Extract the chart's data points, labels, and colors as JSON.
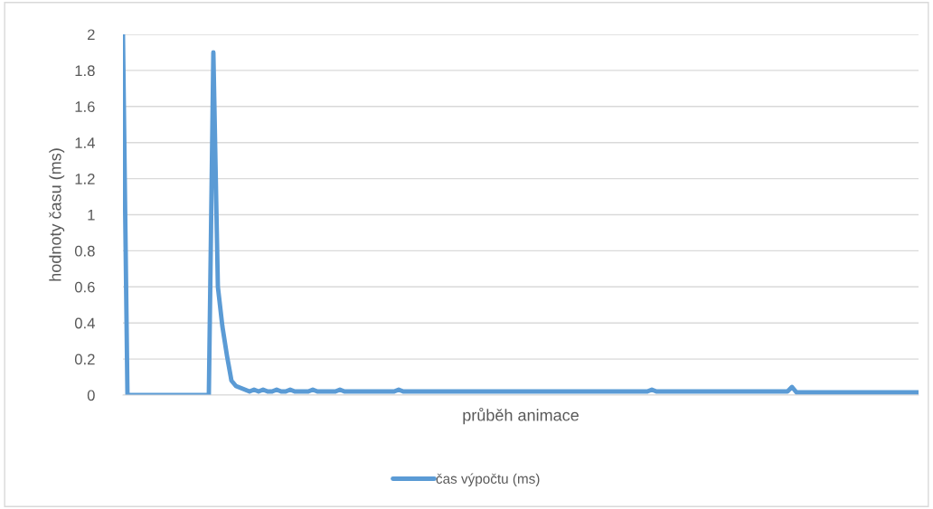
{
  "chart_data": {
    "type": "line",
    "xlabel": "průběh animace",
    "ylabel": "hodnoty času (ms)",
    "categories": [
      null,
      null,
      null,
      null,
      null,
      null,
      null,
      null,
      null,
      null,
      null,
      null,
      null,
      null,
      null,
      null,
      null,
      null,
      null,
      null,
      null,
      null,
      null,
      null,
      null,
      null,
      null,
      null,
      null,
      null,
      null,
      null,
      null,
      null,
      null,
      null,
      null,
      null,
      null,
      null,
      null,
      null,
      null,
      null,
      null,
      null,
      null,
      null,
      null,
      null,
      null,
      null,
      null,
      null,
      null,
      null,
      null,
      null,
      null,
      null,
      null,
      null,
      null,
      null,
      null,
      null,
      null,
      null,
      null,
      null,
      null,
      null,
      null,
      null,
      null,
      null,
      null,
      null,
      null,
      null,
      null,
      null,
      null,
      null,
      null,
      null,
      null,
      null,
      null,
      null,
      null,
      null,
      null,
      null,
      null,
      null,
      null,
      null,
      null,
      null,
      null,
      null,
      null,
      null,
      null,
      null,
      null,
      null,
      null,
      null,
      null,
      null,
      null,
      null,
      null,
      null,
      null,
      null,
      null,
      null,
      null,
      null,
      null,
      null,
      null,
      null,
      null,
      null,
      null,
      null,
      null,
      null,
      null,
      null,
      null,
      null,
      null,
      null,
      null,
      null,
      null,
      null,
      null,
      null,
      null,
      null,
      null,
      null,
      null,
      null,
      null,
      null,
      null,
      null,
      null,
      null,
      null,
      null,
      null,
      null,
      null,
      null,
      null,
      null,
      null,
      null,
      null,
      null,
      null,
      null,
      null,
      null,
      null,
      null,
      null,
      null,
      null
    ],
    "series": [
      {
        "name": "čas výpočtu (ms)",
        "color": "#5b9bd5",
        "values": [
          2,
          0,
          0,
          0,
          0,
          0,
          0,
          0,
          0,
          0,
          0,
          0,
          0,
          0,
          0,
          0,
          0,
          0,
          0,
          0,
          1.9,
          0.6,
          0.38,
          0.22,
          0.08,
          0.05,
          0.04,
          0.03,
          0.02,
          0.03,
          0.02,
          0.03,
          0.02,
          0.02,
          0.03,
          0.02,
          0.02,
          0.03,
          0.02,
          0.02,
          0.02,
          0.02,
          0.03,
          0.02,
          0.02,
          0.02,
          0.02,
          0.02,
          0.03,
          0.02,
          0.02,
          0.02,
          0.02,
          0.02,
          0.02,
          0.02,
          0.02,
          0.02,
          0.02,
          0.02,
          0.02,
          0.03,
          0.02,
          0.02,
          0.02,
          0.02,
          0.02,
          0.02,
          0.02,
          0.02,
          0.02,
          0.02,
          0.02,
          0.02,
          0.02,
          0.02,
          0.02,
          0.02,
          0.02,
          0.02,
          0.02,
          0.02,
          0.02,
          0.02,
          0.02,
          0.02,
          0.02,
          0.02,
          0.02,
          0.02,
          0.02,
          0.02,
          0.02,
          0.02,
          0.02,
          0.02,
          0.02,
          0.02,
          0.02,
          0.02,
          0.02,
          0.02,
          0.02,
          0.02,
          0.02,
          0.02,
          0.02,
          0.02,
          0.02,
          0.02,
          0.02,
          0.02,
          0.02,
          0.02,
          0.02,
          0.02,
          0.02,
          0.03,
          0.02,
          0.02,
          0.02,
          0.02,
          0.02,
          0.02,
          0.02,
          0.02,
          0.02,
          0.02,
          0.02,
          0.02,
          0.02,
          0.02,
          0.02,
          0.02,
          0.02,
          0.02,
          0.02,
          0.02,
          0.02,
          0.02,
          0.02,
          0.02,
          0.02,
          0.02,
          0.02,
          0.02,
          0.02,
          0.02,
          0.045,
          0.015,
          0.015,
          0.015,
          0.015,
          0.015,
          0.015,
          0.015,
          0.015,
          0.015,
          0.015,
          0.015,
          0.015,
          0.015,
          0.015,
          0.015,
          0.015,
          0.015,
          0.015,
          0.015,
          0.015,
          0.015,
          0.015,
          0.015,
          0.015,
          0.015,
          0.015,
          0.015,
          0.015
        ]
      }
    ],
    "ylim": [
      0,
      2
    ],
    "yticks": [
      0,
      0.2,
      0.4,
      0.6,
      0.8,
      1,
      1.2,
      1.4,
      1.6,
      1.8,
      2
    ],
    "grid": "y",
    "legend": "bottom",
    "tick_labels": "y",
    "marker": "none",
    "line_style": "solid"
  }
}
